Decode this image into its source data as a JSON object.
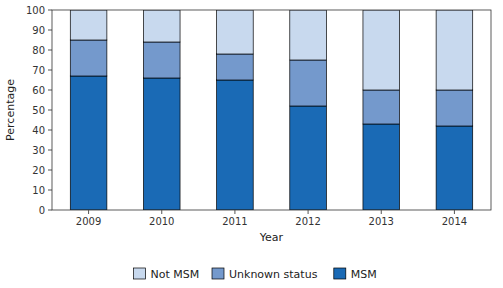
{
  "chart_data": {
    "type": "bar",
    "stacked": true,
    "xlabel": "Year",
    "ylabel": "Percentage",
    "categories": [
      "2009",
      "2010",
      "2011",
      "2012",
      "2013",
      "2014"
    ],
    "series": [
      {
        "name": "MSM",
        "color": "#1a6ab5",
        "values": [
          67,
          66,
          65,
          52,
          43,
          42
        ]
      },
      {
        "name": "Unknown status",
        "color": "#7499cc",
        "values": [
          18,
          18,
          13,
          23,
          17,
          18
        ]
      },
      {
        "name": "Not MSM",
        "color": "#c8d9ee",
        "values": [
          15,
          16,
          22,
          25,
          40,
          40
        ]
      }
    ],
    "ylim": [
      0,
      100
    ],
    "yticks": [
      0,
      10,
      20,
      30,
      40,
      50,
      60,
      70,
      80,
      90,
      100
    ],
    "grid": false,
    "legend": "bottom"
  }
}
